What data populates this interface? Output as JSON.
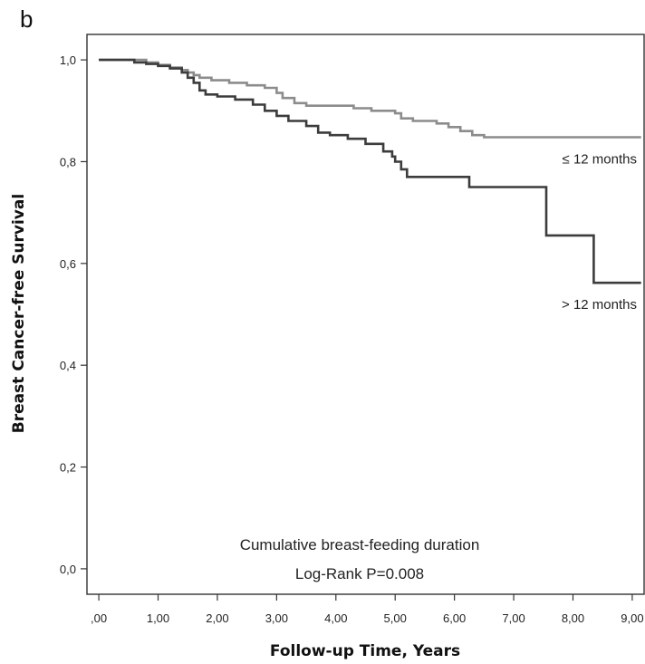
{
  "panel_label": "b",
  "chart_data": {
    "type": "line",
    "title": "",
    "xlabel": "Follow-up Time, Years",
    "ylabel": "Breast Cancer-free Survival",
    "xlim": [
      -0.2,
      9.2
    ],
    "ylim": [
      -0.05,
      1.05
    ],
    "x_ticks": [
      0,
      1,
      2,
      3,
      4,
      5,
      6,
      7,
      8,
      9
    ],
    "x_tick_labels": [
      ",00",
      "1,00",
      "2,00",
      "3,00",
      "4,00",
      "5,00",
      "6,00",
      "7,00",
      "8,00",
      "9,00"
    ],
    "y_ticks": [
      0,
      0.2,
      0.4,
      0.6,
      0.8,
      1.0
    ],
    "y_tick_labels": [
      "0,0",
      "0,2",
      "0,4",
      "0,6",
      "0,8",
      "1,0"
    ],
    "grid": false,
    "annotations": [
      "Cumulative breast-feeding duration",
      "Log-Rank P=0.008"
    ],
    "series": [
      {
        "name": "≤ 12 months",
        "color": "#8c8c8c",
        "points": [
          [
            0.0,
            1.0
          ],
          [
            0.5,
            1.0
          ],
          [
            0.8,
            0.995
          ],
          [
            1.0,
            0.99
          ],
          [
            1.2,
            0.985
          ],
          [
            1.4,
            0.98
          ],
          [
            1.5,
            0.975
          ],
          [
            1.6,
            0.97
          ],
          [
            1.7,
            0.965
          ],
          [
            1.9,
            0.96
          ],
          [
            2.2,
            0.955
          ],
          [
            2.5,
            0.95
          ],
          [
            2.8,
            0.945
          ],
          [
            3.0,
            0.935
          ],
          [
            3.1,
            0.925
          ],
          [
            3.3,
            0.915
          ],
          [
            3.5,
            0.91
          ],
          [
            4.0,
            0.91
          ],
          [
            4.3,
            0.905
          ],
          [
            4.6,
            0.9
          ],
          [
            5.0,
            0.895
          ],
          [
            5.1,
            0.885
          ],
          [
            5.3,
            0.88
          ],
          [
            5.7,
            0.875
          ],
          [
            5.9,
            0.868
          ],
          [
            6.1,
            0.86
          ],
          [
            6.3,
            0.852
          ],
          [
            6.5,
            0.848
          ],
          [
            7.5,
            0.848
          ],
          [
            9.15,
            0.848
          ]
        ]
      },
      {
        "name": "> 12 months",
        "color": "#3c3c3c",
        "points": [
          [
            0.0,
            1.0
          ],
          [
            0.4,
            1.0
          ],
          [
            0.6,
            0.995
          ],
          [
            0.8,
            0.992
          ],
          [
            1.0,
            0.988
          ],
          [
            1.2,
            0.983
          ],
          [
            1.4,
            0.975
          ],
          [
            1.5,
            0.965
          ],
          [
            1.6,
            0.955
          ],
          [
            1.7,
            0.94
          ],
          [
            1.8,
            0.932
          ],
          [
            2.0,
            0.928
          ],
          [
            2.3,
            0.922
          ],
          [
            2.6,
            0.912
          ],
          [
            2.8,
            0.9
          ],
          [
            3.0,
            0.89
          ],
          [
            3.2,
            0.88
          ],
          [
            3.5,
            0.87
          ],
          [
            3.7,
            0.857
          ],
          [
            3.9,
            0.852
          ],
          [
            4.2,
            0.845
          ],
          [
            4.5,
            0.835
          ],
          [
            4.8,
            0.82
          ],
          [
            4.95,
            0.81
          ],
          [
            5.0,
            0.8
          ],
          [
            5.1,
            0.785
          ],
          [
            5.2,
            0.77
          ],
          [
            5.6,
            0.77
          ],
          [
            6.2,
            0.77
          ],
          [
            6.25,
            0.75
          ],
          [
            7.5,
            0.75
          ],
          [
            7.55,
            0.655
          ],
          [
            8.3,
            0.655
          ],
          [
            8.35,
            0.562
          ],
          [
            9.15,
            0.562
          ]
        ]
      }
    ]
  }
}
